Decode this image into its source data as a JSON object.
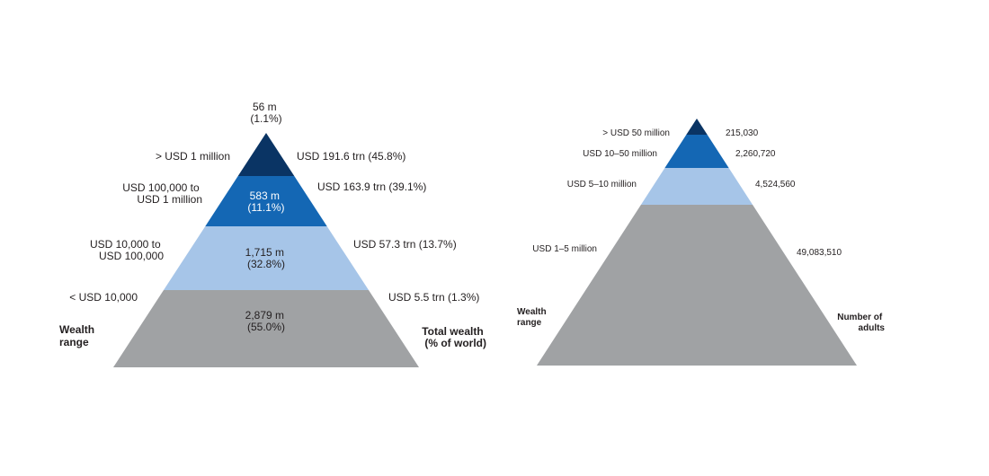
{
  "colors": {
    "tier1": "#0a3464",
    "tier2": "#1467b4",
    "tier3": "#a6c5e8",
    "tier4": "#a0a2a4",
    "text_dark": "#231f20",
    "text_light": "#ffffff"
  },
  "chart_data": [
    {
      "type": "pyramid",
      "title": "",
      "left_axis_label": [
        "Wealth",
        "range"
      ],
      "right_axis_label": [
        "Total wealth",
        "(% of world)"
      ],
      "tiers": [
        {
          "wealth_range": [
            "> USD 1 million"
          ],
          "adults": [
            "56 m",
            "(1.1%)"
          ],
          "adults_millions": 56,
          "adults_pct": 1.1,
          "total_wealth": "USD 191.6 trn (45.8%)",
          "total_wealth_trn": 191.6,
          "total_wealth_pct": 45.8
        },
        {
          "wealth_range": [
            "USD 100,000 to",
            "USD 1 million"
          ],
          "adults": [
            "583 m",
            "(11.1%)"
          ],
          "adults_millions": 583,
          "adults_pct": 11.1,
          "total_wealth": "USD 163.9 trn (39.1%)",
          "total_wealth_trn": 163.9,
          "total_wealth_pct": 39.1
        },
        {
          "wealth_range": [
            "USD 10,000 to",
            "USD 100,000"
          ],
          "adults": [
            "1,715 m",
            "(32.8%)"
          ],
          "adults_millions": 1715,
          "adults_pct": 32.8,
          "total_wealth": "USD 57.3 trn (13.7%)",
          "total_wealth_trn": 57.3,
          "total_wealth_pct": 13.7
        },
        {
          "wealth_range": [
            "< USD 10,000"
          ],
          "adults": [
            "2,879 m",
            "(55.0%)"
          ],
          "adults_millions": 2879,
          "adults_pct": 55.0,
          "total_wealth": "USD 5.5 trn (1.3%)",
          "total_wealth_trn": 5.5,
          "total_wealth_pct": 1.3
        }
      ]
    },
    {
      "type": "pyramid",
      "title": "",
      "left_axis_label": [
        "Wealth",
        "range"
      ],
      "right_axis_label": [
        "Number of",
        "adults"
      ],
      "tiers": [
        {
          "wealth_range": "> USD 50 million",
          "adults": "215,030",
          "adults_value": 215030
        },
        {
          "wealth_range": "USD 10–50 million",
          "adults": "2,260,720",
          "adults_value": 2260720
        },
        {
          "wealth_range": "USD 5–10 million",
          "adults": "4,524,560",
          "adults_value": 4524560
        },
        {
          "wealth_range": "USD 1–5 million",
          "adults": "49,083,510",
          "adults_value": 49083510
        }
      ]
    }
  ]
}
